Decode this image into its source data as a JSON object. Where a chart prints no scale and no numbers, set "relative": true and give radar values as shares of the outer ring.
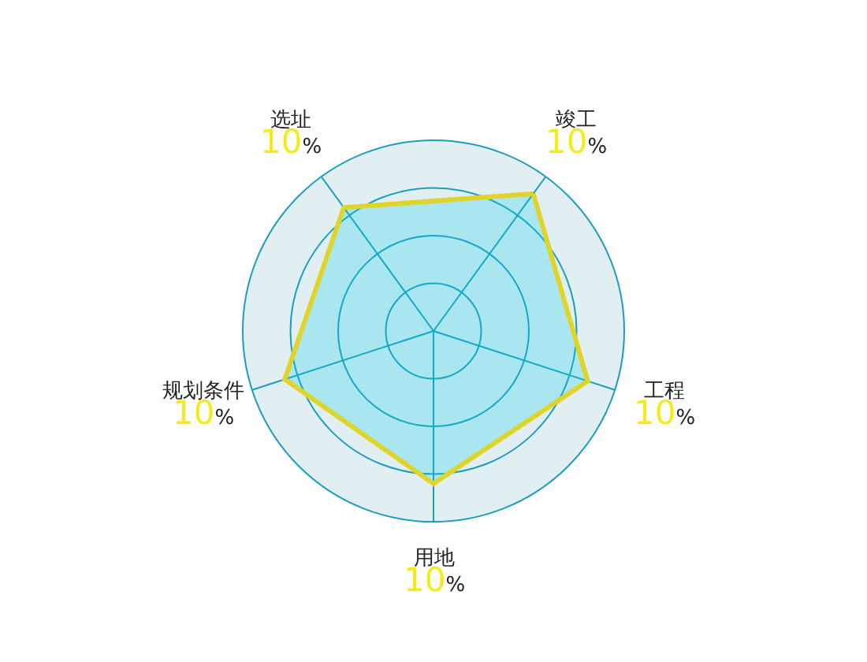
{
  "chart_data": {
    "type": "radar",
    "relative": true,
    "grid": true,
    "marker": "none",
    "line_style": "solid",
    "categories": [
      "竣工",
      "工程",
      "用地",
      "规划条件",
      "选址"
    ],
    "annotations": [
      "10%",
      "10%",
      "10%",
      "10%",
      "10%"
    ],
    "series": [
      {
        "color": "#dfd52a",
        "values": [
          0.89,
          0.85,
          0.8,
          0.82,
          0.8
        ]
      }
    ]
  }
}
